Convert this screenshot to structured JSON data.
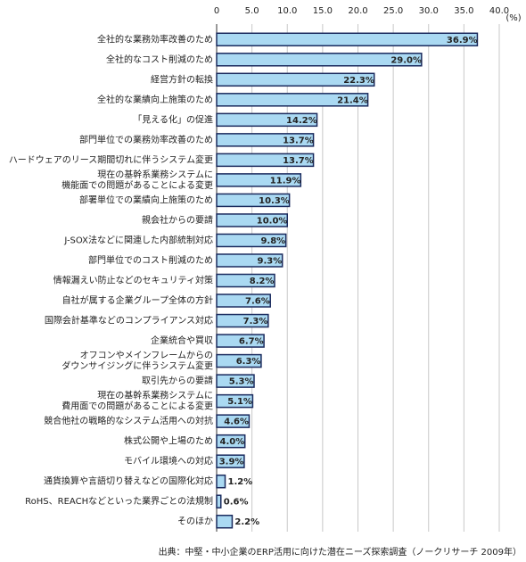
{
  "chart_data": {
    "type": "bar",
    "orientation": "horizontal",
    "unit": "(%)",
    "source": "出典：中堅・中小企業のERP活用に向けた潜在ニーズ探索調査（ノークリサーチ 2009年）",
    "categories": [
      "全社的な業務効率改善のため",
      "全社的なコスト削減のため",
      "経営方針の転換",
      "全社的な業績向上施策のため",
      "「見える化」の促進",
      "部門単位での業務効率改善のため",
      "ハードウェアのリース期間切れに伴うシステム変更",
      "現在の基幹系業務システムに\n機能面での問題があることによる変更",
      "部署単位での業績向上施策のため",
      "親会社からの要請",
      "J-SOX法などに関連した内部統制対応",
      "部門単位でのコスト削減のため",
      "情報漏えい防止などのセキュリティ対策",
      "自社が属する企業グループ全体の方針",
      "国際会計基準などのコンプライアンス対応",
      "企業統合や買収",
      "オフコンやメインフレームからの\nダウンサイジングに伴うシステム変更",
      "取引先からの要請",
      "現在の基幹系業務システムに\n費用面での問題があることによる変更",
      "競合他社の戦略的なシステム活用への対抗",
      "株式公開や上場のため",
      "モバイル環境への対応",
      "通貨換算や言語切り替えなどの国際化対応",
      "RoHS、REACHなどといった業界ごとの法規制",
      "そのほか"
    ],
    "values": [
      36.9,
      29.0,
      22.3,
      21.4,
      14.2,
      13.7,
      13.7,
      11.9,
      10.3,
      10.0,
      9.8,
      9.3,
      8.2,
      7.6,
      7.3,
      6.7,
      6.3,
      5.3,
      5.1,
      4.6,
      4.0,
      3.9,
      1.2,
      0.6,
      2.2
    ],
    "value_labels": [
      "36.9%",
      "29.0%",
      "22.3%",
      "21.4%",
      "14.2%",
      "13.7%",
      "13.7%",
      "11.9%",
      "10.3%",
      "10.0%",
      "9.8%",
      "9.3%",
      "8.2%",
      "7.6%",
      "7.3%",
      "6.7%",
      "6.3%",
      "5.3%",
      "5.1%",
      "4.6%",
      "4.0%",
      "3.9%",
      "1.2%",
      "0.6%",
      "2.2%"
    ],
    "color": "#aad9f2",
    "edge_color": "#1b2b5e",
    "xlim": [
      0,
      40
    ],
    "xticks": [
      0,
      {
        "value": 5,
        "label": "5.0"
      },
      {
        "value": 10,
        "label": "10.0"
      },
      {
        "value": 15,
        "label": "15.0"
      },
      {
        "value": 20,
        "label": "20.0"
      },
      {
        "value": 25,
        "label": "25.0"
      },
      {
        "value": 30,
        "label": "30.0"
      },
      {
        "value": 35,
        "label": "35.0"
      },
      {
        "value": 40,
        "label": "40.0"
      }
    ],
    "grid": true
  }
}
